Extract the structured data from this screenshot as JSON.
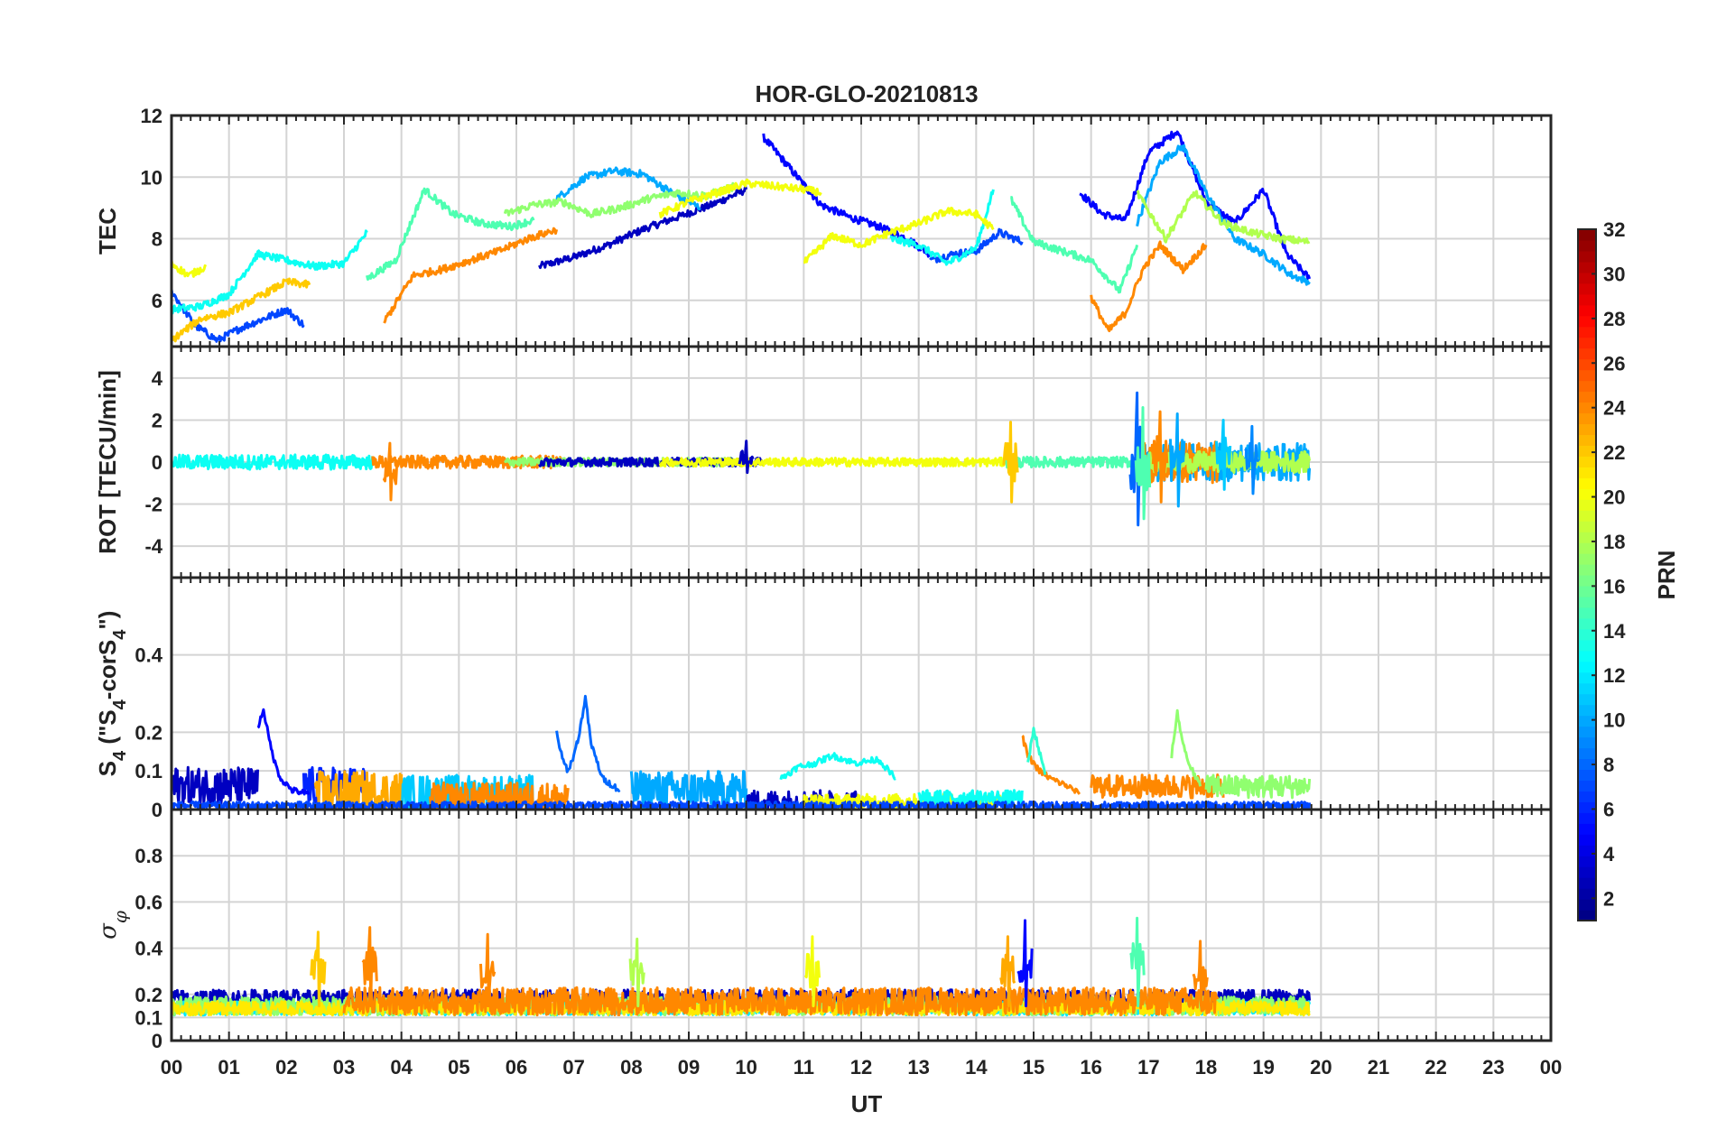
{
  "title": "HOR-GLO-20210813",
  "xlabel": "UT",
  "x_tick_labels": [
    "00",
    "01",
    "02",
    "03",
    "04",
    "05",
    "06",
    "07",
    "08",
    "09",
    "10",
    "11",
    "12",
    "13",
    "14",
    "15",
    "16",
    "17",
    "18",
    "19",
    "20",
    "21",
    "22",
    "23",
    "00"
  ],
  "colorbar": {
    "label": "PRN",
    "colormap": "jet",
    "range": [
      1,
      32
    ],
    "tick_labels": [
      "2",
      "4",
      "6",
      "8",
      "10",
      "12",
      "14",
      "16",
      "18",
      "20",
      "22",
      "24",
      "26",
      "28",
      "30",
      "32"
    ]
  },
  "chart_data": [
    {
      "type": "line",
      "ylabel": "TEC",
      "ylim": [
        4.5,
        12
      ],
      "ytick_labels": [
        "6",
        "8",
        "10",
        "12"
      ],
      "xlim": [
        0,
        24
      ],
      "grid": true,
      "series": [
        {
          "prn": 3,
          "x": [
            6.4,
            7.0,
            7.6,
            8.2,
            8.8,
            9.4,
            10.0
          ],
          "y": [
            7.1,
            7.4,
            7.8,
            8.3,
            8.7,
            9.1,
            9.6
          ]
        },
        {
          "prn": 5,
          "x": [
            10.3,
            10.8,
            11.3,
            11.8,
            12.3,
            12.8,
            13.2
          ],
          "y": [
            11.3,
            10.2,
            9.1,
            8.7,
            8.4,
            8.0,
            7.5
          ]
        },
        {
          "prn": 5,
          "x": [
            15.8,
            16.2,
            16.6,
            17.0,
            17.5,
            18.0,
            18.5,
            19.0,
            19.4,
            19.8
          ],
          "y": [
            9.5,
            8.8,
            8.6,
            10.8,
            11.5,
            9.2,
            8.5,
            9.6,
            7.5,
            6.7
          ]
        },
        {
          "prn": 7,
          "x": [
            0.0,
            0.4,
            0.8,
            1.2,
            1.6,
            2.0,
            2.3
          ],
          "y": [
            6.3,
            5.2,
            4.7,
            5.1,
            5.4,
            5.7,
            5.2
          ]
        },
        {
          "prn": 7,
          "x": [
            13.2,
            13.6,
            14.0,
            14.4,
            14.8
          ],
          "y": [
            7.3,
            7.5,
            7.6,
            8.2,
            7.9
          ]
        },
        {
          "prn": 10,
          "x": [
            6.7,
            7.2,
            7.7,
            8.2,
            8.7,
            9.2
          ],
          "y": [
            9.3,
            10.0,
            10.2,
            10.1,
            9.5,
            9.0
          ]
        },
        {
          "prn": 10,
          "x": [
            16.8,
            17.2,
            17.6,
            18.0,
            18.5,
            19.0,
            19.5,
            19.8
          ],
          "y": [
            8.5,
            10.5,
            11.0,
            9.5,
            8.0,
            7.5,
            6.8,
            6.6
          ]
        },
        {
          "prn": 13,
          "x": [
            0.0,
            0.5,
            1.0,
            1.5,
            2.0,
            2.5,
            3.0,
            3.4
          ],
          "y": [
            5.7,
            5.8,
            6.2,
            7.5,
            7.3,
            7.1,
            7.2,
            8.2
          ]
        },
        {
          "prn": 13,
          "x": [
            12.5,
            13.0,
            13.5,
            14.0,
            14.3
          ],
          "y": [
            8.0,
            7.8,
            7.2,
            7.7,
            9.6
          ]
        },
        {
          "prn": 15,
          "x": [
            3.4,
            3.9,
            4.4,
            4.9,
            5.4,
            5.9,
            6.3
          ],
          "y": [
            6.7,
            7.3,
            9.6,
            8.8,
            8.5,
            8.4,
            8.6
          ]
        },
        {
          "prn": 15,
          "x": [
            14.6,
            15.0,
            15.5,
            16.0,
            16.5,
            16.8
          ],
          "y": [
            9.3,
            7.9,
            7.6,
            7.3,
            6.3,
            7.8
          ]
        },
        {
          "prn": 17,
          "x": [
            5.8,
            6.3,
            6.8,
            7.3,
            7.8,
            8.3,
            8.8,
            9.3,
            9.8
          ],
          "y": [
            8.8,
            9.1,
            9.2,
            8.8,
            9.0,
            9.3,
            9.5,
            9.4,
            9.7
          ]
        },
        {
          "prn": 18,
          "x": [
            16.8,
            17.3,
            17.8,
            18.3,
            18.8,
            19.3,
            19.8
          ],
          "y": [
            9.5,
            8.0,
            9.5,
            8.5,
            8.2,
            8.0,
            7.9
          ]
        },
        {
          "prn": 20,
          "x": [
            0.0,
            0.3,
            0.6
          ],
          "y": [
            7.2,
            6.8,
            7.1
          ]
        },
        {
          "prn": 20,
          "x": [
            8.5,
            9.0,
            9.5,
            10.0,
            10.5,
            11.0,
            11.3
          ],
          "y": [
            8.8,
            9.2,
            9.5,
            9.8,
            9.7,
            9.6,
            9.5
          ]
        },
        {
          "prn": 20,
          "x": [
            11.0,
            11.5,
            12.0,
            12.5,
            13.0,
            13.5,
            14.0,
            14.3
          ],
          "y": [
            7.2,
            8.1,
            7.8,
            8.2,
            8.5,
            8.9,
            8.8,
            8.3
          ]
        },
        {
          "prn": 22,
          "x": [
            0.0,
            0.5,
            1.0,
            1.5,
            2.0,
            2.4
          ],
          "y": [
            4.7,
            5.4,
            5.6,
            6.1,
            6.6,
            6.5
          ]
        },
        {
          "prn": 24,
          "x": [
            3.7,
            4.2,
            4.7,
            5.2,
            5.7,
            6.2,
            6.7
          ],
          "y": [
            5.3,
            6.8,
            7.0,
            7.3,
            7.6,
            8.0,
            8.3
          ]
        },
        {
          "prn": 24,
          "x": [
            16.0,
            16.3,
            16.6,
            16.9,
            17.2,
            17.6,
            18.0
          ],
          "y": [
            6.1,
            5.0,
            5.6,
            7.0,
            7.8,
            7.0,
            7.8
          ]
        }
      ]
    },
    {
      "type": "line",
      "ylabel": "ROT [TECU/min]",
      "ylim": [
        -5.5,
        5.5
      ],
      "ytick_labels": [
        "-4",
        "-2",
        "0",
        "2",
        "4"
      ],
      "xlim": [
        0,
        24
      ],
      "grid": true,
      "spikes": [
        {
          "x": 3.8,
          "prn": 24,
          "low": -1.8,
          "high": 0.9
        },
        {
          "x": 10.0,
          "prn": 3,
          "low": -0.5,
          "high": 1.0
        },
        {
          "x": 14.6,
          "prn": 22,
          "low": -1.9,
          "high": 1.9
        },
        {
          "x": 16.8,
          "prn": 8,
          "low": -3.0,
          "high": 3.3
        },
        {
          "x": 16.9,
          "prn": 15,
          "low": -2.7,
          "high": 2.6
        },
        {
          "x": 17.2,
          "prn": 24,
          "low": -1.9,
          "high": 2.4
        },
        {
          "x": 17.5,
          "prn": 10,
          "low": -2.1,
          "high": 2.3
        },
        {
          "x": 18.3,
          "prn": 11,
          "low": -1.3,
          "high": 2.0
        },
        {
          "x": 18.8,
          "prn": 9,
          "low": -1.5,
          "high": 1.7
        }
      ],
      "noise_series": [
        {
          "prn": 13,
          "x_range": [
            0.0,
            3.5
          ],
          "amplitude": 0.35
        },
        {
          "prn": 24,
          "x_range": [
            3.5,
            6.8
          ],
          "amplitude": 0.3
        },
        {
          "prn": 17,
          "x_range": [
            5.8,
            9.8
          ],
          "amplitude": 0.2
        },
        {
          "prn": 3,
          "x_range": [
            6.4,
            10.3
          ],
          "amplitude": 0.2
        },
        {
          "prn": 20,
          "x_range": [
            8.5,
            14.5
          ],
          "amplitude": 0.2
        },
        {
          "prn": 15,
          "x_range": [
            14.5,
            16.8
          ],
          "amplitude": 0.25
        },
        {
          "prn": 10,
          "x_range": [
            16.8,
            19.8
          ],
          "amplitude": 0.9
        },
        {
          "prn": 24,
          "x_range": [
            16.8,
            18.2
          ],
          "amplitude": 1.0
        },
        {
          "prn": 18,
          "x_range": [
            17.0,
            19.8
          ],
          "amplitude": 0.5
        }
      ]
    },
    {
      "type": "line",
      "ylabel": "S4 (\"S4-corS4\")",
      "ylabel_parts": {
        "main": "S",
        "sub1": "4",
        "mid": " (\"S",
        "sub2": "4",
        "mid2": "-corS",
        "sub3": "4",
        "end": "\")"
      },
      "ylim": [
        0,
        0.6
      ],
      "ytick_labels": [
        "0",
        "0.1",
        "0.2",
        "0.4"
      ],
      "ytick_values": [
        0,
        0.1,
        0.2,
        0.4
      ],
      "xlim": [
        0,
        24
      ],
      "grid": true,
      "series": [
        {
          "prn": 5,
          "x": [
            1.5,
            1.6,
            1.7,
            1.8,
            1.9,
            2.1,
            2.4
          ],
          "y": [
            0.21,
            0.26,
            0.18,
            0.12,
            0.08,
            0.05,
            0.04
          ]
        },
        {
          "prn": 8,
          "x": [
            6.7,
            6.8,
            6.9,
            7.0,
            7.1,
            7.2,
            7.3,
            7.5,
            7.8
          ],
          "y": [
            0.2,
            0.13,
            0.1,
            0.14,
            0.2,
            0.29,
            0.17,
            0.08,
            0.05
          ]
        },
        {
          "prn": 13,
          "x": [
            10.6,
            10.9,
            11.2,
            11.5,
            11.9,
            12.3,
            12.6
          ],
          "y": [
            0.08,
            0.11,
            0.12,
            0.14,
            0.12,
            0.13,
            0.08
          ]
        },
        {
          "prn": 24,
          "x": [
            14.8,
            14.9,
            15.0,
            15.1,
            15.3,
            15.6,
            15.8
          ],
          "y": [
            0.19,
            0.14,
            0.12,
            0.1,
            0.08,
            0.06,
            0.04
          ]
        },
        {
          "prn": 17,
          "x": [
            17.4,
            17.5,
            17.6,
            17.7,
            17.9
          ],
          "y": [
            0.14,
            0.25,
            0.17,
            0.12,
            0.06
          ]
        },
        {
          "prn": 14,
          "x": [
            14.9,
            15.0,
            15.1,
            15.2
          ],
          "y": [
            0.12,
            0.21,
            0.15,
            0.09
          ]
        }
      ],
      "noise_series": [
        {
          "prn": 3,
          "x_range": [
            0.0,
            1.5
          ],
          "base": 0.06,
          "amplitude": 0.05
        },
        {
          "prn": 6,
          "x_range": [
            2.3,
            3.4
          ],
          "base": 0.06,
          "amplitude": 0.05
        },
        {
          "prn": 23,
          "x_range": [
            2.5,
            4.0
          ],
          "base": 0.04,
          "amplitude": 0.06
        },
        {
          "prn": 11,
          "x_range": [
            4.0,
            6.3
          ],
          "base": 0.04,
          "amplitude": 0.05
        },
        {
          "prn": 24,
          "x_range": [
            4.5,
            6.9
          ],
          "base": 0.03,
          "amplitude": 0.04
        },
        {
          "prn": 10,
          "x_range": [
            8.0,
            10.0
          ],
          "base": 0.05,
          "amplitude": 0.05
        },
        {
          "prn": 3,
          "x_range": [
            10.0,
            12.0
          ],
          "base": 0.02,
          "amplitude": 0.03
        },
        {
          "prn": 20,
          "x_range": [
            11.0,
            14.5
          ],
          "base": 0.02,
          "amplitude": 0.02
        },
        {
          "prn": 13,
          "x_range": [
            13.0,
            14.8
          ],
          "base": 0.03,
          "amplitude": 0.02
        },
        {
          "prn": 24,
          "x_range": [
            16.0,
            18.3
          ],
          "base": 0.06,
          "amplitude": 0.03
        },
        {
          "prn": 17,
          "x_range": [
            18.0,
            19.8
          ],
          "base": 0.06,
          "amplitude": 0.03
        },
        {
          "prn": 7,
          "x_range": [
            0.0,
            19.8
          ],
          "base": 0.01,
          "amplitude": 0.01
        }
      ]
    },
    {
      "type": "line",
      "ylabel": "σ φ",
      "ylabel_parts": {
        "main": "σ",
        "sub1": "φ"
      },
      "ylim": [
        0,
        1
      ],
      "ytick_labels": [
        "0",
        "0.1",
        "0.2",
        "0.4",
        "0.6",
        "0.8"
      ],
      "ytick_values": [
        0,
        0.1,
        0.2,
        0.4,
        0.6,
        0.8
      ],
      "xlim": [
        0,
        24
      ],
      "grid": true,
      "spikes": [
        {
          "x": 2.55,
          "prn": 22,
          "low": 0.15,
          "high": 0.47
        },
        {
          "x": 3.45,
          "prn": 24,
          "low": 0.15,
          "high": 0.49
        },
        {
          "x": 5.5,
          "prn": 24,
          "low": 0.15,
          "high": 0.46
        },
        {
          "x": 8.1,
          "prn": 18,
          "low": 0.15,
          "high": 0.44
        },
        {
          "x": 11.15,
          "prn": 20,
          "low": 0.15,
          "high": 0.45
        },
        {
          "x": 14.55,
          "prn": 23,
          "low": 0.15,
          "high": 0.45
        },
        {
          "x": 14.85,
          "prn": 5,
          "low": 0.15,
          "high": 0.52
        },
        {
          "x": 16.8,
          "prn": 15,
          "low": 0.15,
          "high": 0.53
        },
        {
          "x": 17.9,
          "prn": 24,
          "low": 0.15,
          "high": 0.43
        }
      ],
      "noise_series": [
        {
          "prn": 3,
          "x_range": [
            0.0,
            19.8
          ],
          "base": 0.18,
          "amplitude": 0.04
        },
        {
          "prn": 12,
          "x_range": [
            0.0,
            19.8
          ],
          "base": 0.14,
          "amplitude": 0.03
        },
        {
          "prn": 17,
          "x_range": [
            0.0,
            19.8
          ],
          "base": 0.15,
          "amplitude": 0.04
        },
        {
          "prn": 21,
          "x_range": [
            0.0,
            19.8
          ],
          "base": 0.14,
          "amplitude": 0.03
        },
        {
          "prn": 24,
          "x_range": [
            3.0,
            18.2
          ],
          "base": 0.17,
          "amplitude": 0.06
        }
      ]
    }
  ]
}
